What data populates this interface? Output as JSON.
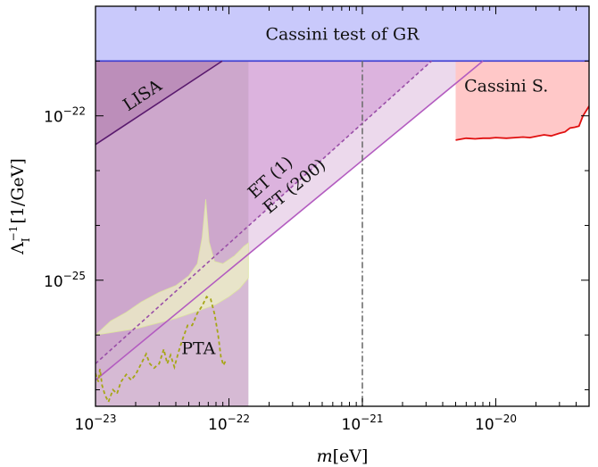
{
  "chart_data": {
    "type": "area",
    "title": "",
    "xlabel": "m[eV]",
    "ylabel": "Λ_I^{-1}[1/GeV]",
    "xscale": "log",
    "yscale": "log",
    "xlim": [
      1e-23,
      5e-20
    ],
    "ylim": [
      5e-28,
      1e-20
    ],
    "grid": false,
    "x_ticks": [
      {
        "value": 1e-23,
        "base": "10",
        "exp": "−23"
      },
      {
        "value": 1e-22,
        "base": "10",
        "exp": "−22"
      },
      {
        "value": 1e-21,
        "base": "10",
        "exp": "−21"
      },
      {
        "value": 1e-20,
        "base": "10",
        "exp": "−20"
      }
    ],
    "y_ticks": [
      {
        "value": 1e-22,
        "base": "10",
        "exp": "−22"
      },
      {
        "value": 1e-25,
        "base": "10",
        "exp": "−25"
      }
    ],
    "colors": {
      "cassini_gr_fill": "#c9c9fb",
      "cassini_gr_edge": "#3b3bd0",
      "lisa_fill": "#c8a3c5",
      "lisa_edge": "#5a1a6e",
      "et1_fill": "#dcb3de",
      "et1_edge": "#9a4fa8",
      "et200_fill": "#ecd9ec",
      "et200_edge": "#b35cc0",
      "cassini_s_fill": "#ffc8c8",
      "cassini_s_edge": "#e01010",
      "pta_fill": "#eef2c6",
      "pta_edge": "#a6a616",
      "vertical_line": "#707070"
    },
    "regions": {
      "cassini_gr": {
        "label": "Cassini test of GR",
        "y_min": 1e-21
      },
      "lisa": {
        "label": "LISA",
        "x_max": 1.4e-22,
        "line": [
          [
            1e-23,
            3e-23
          ],
          [
            8.9e-23,
            1e-21
          ]
        ]
      },
      "et1": {
        "label": "ET (1)",
        "line": [
          [
            1e-23,
            3e-27
          ],
          [
            3.3e-21,
            1e-21
          ]
        ]
      },
      "et200": {
        "label": "ET (200)",
        "line": [
          [
            1e-23,
            1.5e-27
          ],
          [
            8e-21,
            1e-21
          ]
        ]
      },
      "cassini_s": {
        "label": "Cassini S.",
        "x_min": 5e-21,
        "curve": [
          [
            5e-21,
            3.6e-23
          ],
          [
            6e-21,
            3.9e-23
          ],
          [
            7e-21,
            3.8e-23
          ],
          [
            8e-21,
            3.9e-23
          ],
          [
            9e-21,
            3.9e-23
          ],
          [
            1e-20,
            4e-23
          ],
          [
            1.2e-20,
            3.9e-23
          ],
          [
            1.4e-20,
            4e-23
          ],
          [
            1.6e-20,
            4.1e-23
          ],
          [
            1.8e-20,
            4e-23
          ],
          [
            2e-20,
            4.2e-23
          ],
          [
            2.3e-20,
            4.5e-23
          ],
          [
            2.6e-20,
            4.3e-23
          ],
          [
            3e-20,
            4.8e-23
          ],
          [
            3.3e-20,
            5.1e-23
          ],
          [
            3.6e-20,
            6e-23
          ],
          [
            3.9e-20,
            6.2e-23
          ],
          [
            4.2e-20,
            6.5e-23
          ],
          [
            4.5e-20,
            1e-22
          ],
          [
            5e-20,
            1.5e-22
          ]
        ]
      },
      "pta": {
        "label": "PTA",
        "upper": [
          [
            1e-23,
            1e-26
          ],
          [
            1.3e-23,
            1.8e-26
          ],
          [
            1.7e-23,
            2.6e-26
          ],
          [
            2.2e-23,
            4e-26
          ],
          [
            3e-23,
            6e-26
          ],
          [
            4e-23,
            8e-26
          ],
          [
            5e-23,
            1.2e-25
          ],
          [
            5.8e-23,
            2e-25
          ],
          [
            6.3e-23,
            6e-25
          ],
          [
            6.7e-23,
            3e-24
          ],
          [
            7.1e-23,
            5e-25
          ],
          [
            7.8e-23,
            2.2e-25
          ],
          [
            9e-23,
            2e-25
          ],
          [
            1.1e-22,
            2.8e-25
          ],
          [
            1.3e-22,
            4.2e-25
          ],
          [
            1.4e-22,
            4.8e-25
          ]
        ],
        "lower": [
          [
            1.4e-22,
            1.1e-25
          ],
          [
            1.2e-22,
            7e-26
          ],
          [
            1e-22,
            5e-26
          ],
          [
            8e-23,
            3.6e-26
          ],
          [
            6e-23,
            2.8e-26
          ],
          [
            4e-23,
            2e-26
          ],
          [
            2e-23,
            1.3e-26
          ],
          [
            1e-23,
            1e-26
          ]
        ],
        "dashed": [
          [
            1e-23,
            2e-27
          ],
          [
            1.05e-23,
            1.4e-27
          ],
          [
            1.08e-23,
            2.4e-27
          ],
          [
            1.12e-23,
            1.2e-27
          ],
          [
            1.18e-23,
            8e-28
          ],
          [
            1.25e-23,
            6e-28
          ],
          [
            1.35e-23,
            1e-27
          ],
          [
            1.45e-23,
            8.5e-28
          ],
          [
            1.55e-23,
            1.4e-27
          ],
          [
            1.7e-23,
            1.9e-27
          ],
          [
            1.85e-23,
            1.5e-27
          ],
          [
            2e-23,
            1.9e-27
          ],
          [
            2.2e-23,
            3e-27
          ],
          [
            2.4e-23,
            4.5e-27
          ],
          [
            2.55e-23,
            3e-27
          ],
          [
            2.75e-23,
            2.5e-27
          ],
          [
            3e-23,
            3e-27
          ],
          [
            3.25e-23,
            5.5e-27
          ],
          [
            3.45e-23,
            3e-27
          ],
          [
            3.65e-23,
            4.3e-27
          ],
          [
            3.9e-23,
            2.6e-27
          ],
          [
            4.2e-23,
            5e-27
          ],
          [
            4.5e-23,
            8.5e-27
          ],
          [
            4.9e-23,
            1.5e-26
          ],
          [
            5.3e-23,
            1.5e-26
          ],
          [
            5.8e-23,
            2.5e-26
          ],
          [
            6.3e-23,
            3.4e-26
          ],
          [
            6.8e-23,
            5e-26
          ],
          [
            7.3e-23,
            4.5e-26
          ],
          [
            7.8e-23,
            2.4e-26
          ],
          [
            8.3e-23,
            1e-26
          ],
          [
            8.7e-23,
            4e-27
          ],
          [
            9.1e-23,
            2.8e-27
          ],
          [
            9.5e-23,
            3.5e-27
          ]
        ]
      }
    },
    "vertical_line_x": 1e-21
  }
}
